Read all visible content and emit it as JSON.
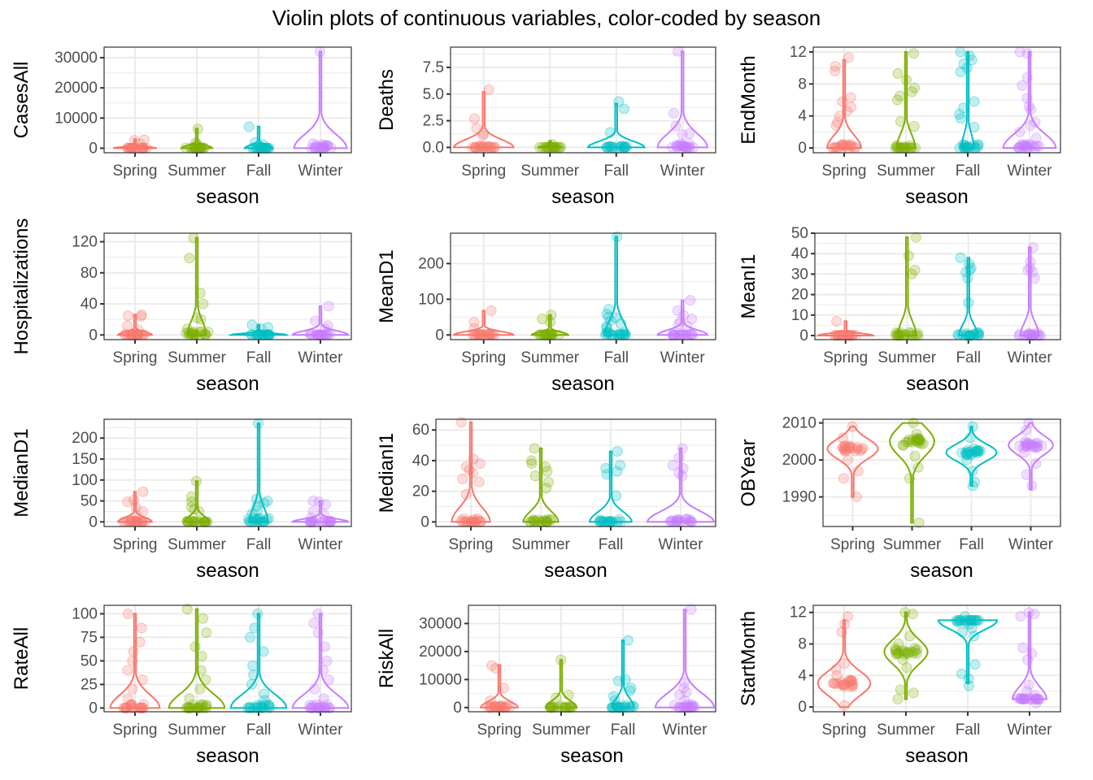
{
  "chart_data": {
    "type": "violin",
    "title": "Violin plots of continuous variables, color-coded by season",
    "categories": [
      "Spring",
      "Summer",
      "Fall",
      "Winter"
    ],
    "colors": {
      "Spring": "#F8766D",
      "Summer": "#7CAE00",
      "Fall": "#00BFC4",
      "Winter": "#C77CFF"
    },
    "grid": true,
    "legend": "none",
    "panels": [
      {
        "ylabel": "CasesAll",
        "xlabel": "season",
        "ylim": [
          -1500,
          33500
        ],
        "yticks": [
          0,
          10000,
          20000,
          30000
        ],
        "ytick_labels": [
          "0",
          "10000",
          "20000",
          "30000"
        ],
        "violins": [
          {
            "season": "Spring",
            "min": 0,
            "max": 3000,
            "peak_width": 0.7
          },
          {
            "season": "Summer",
            "min": 0,
            "max": 6500,
            "peak_width": 0.5
          },
          {
            "season": "Fall",
            "min": 0,
            "max": 7200,
            "peak_width": 0.45
          },
          {
            "season": "Winter",
            "min": 0,
            "max": 32000,
            "peak_width": 0.85
          }
        ],
        "outliers": {
          "Spring": [
            2800,
            2600,
            1500
          ],
          "Summer": [
            6400,
            1800,
            1200
          ],
          "Fall": [
            7100,
            1900,
            1200
          ],
          "Winter": [
            32000,
            1500,
            900
          ]
        }
      },
      {
        "ylabel": "Deaths",
        "xlabel": "season",
        "ylim": [
          -0.5,
          9.4
        ],
        "yticks": [
          0,
          2.5,
          5,
          7.5
        ],
        "ytick_labels": [
          "0.0",
          "2.5",
          "5.0",
          "7.5"
        ],
        "violins": [
          {
            "season": "Spring",
            "min": 0,
            "max": 5.2,
            "peak_width": 0.9
          },
          {
            "season": "Summer",
            "min": 0,
            "max": 0.6,
            "peak_width": 0.35
          },
          {
            "season": "Fall",
            "min": 0,
            "max": 4.1,
            "peak_width": 0.85
          },
          {
            "season": "Winter",
            "min": 0,
            "max": 9,
            "peak_width": 0.75
          }
        ],
        "outliers": {
          "Spring": [
            5.4,
            2.7,
            1.8,
            1.3,
            1.1
          ],
          "Summer": [
            0.3
          ],
          "Fall": [
            4.3,
            3.6,
            1.4
          ],
          "Winter": [
            9.0,
            3.2,
            2.0,
            1.3,
            1.2
          ]
        }
      },
      {
        "ylabel": "EndMonth",
        "xlabel": "season",
        "ylim": [
          -0.6,
          12.6
        ],
        "yticks": [
          0,
          4,
          8,
          12
        ],
        "ytick_labels": [
          "0",
          "4",
          "8",
          "12"
        ],
        "violins": [
          {
            "season": "Spring",
            "min": 0,
            "max": 11,
            "peak_width": 0.55
          },
          {
            "season": "Summer",
            "min": 0,
            "max": 12,
            "peak_width": 0.3
          },
          {
            "season": "Fall",
            "min": 0,
            "max": 12,
            "peak_width": 0.2
          },
          {
            "season": "Winter",
            "min": 0,
            "max": 12,
            "peak_width": 0.85
          }
        ],
        "outliers": {
          "Spring": [
            11.3,
            10.2,
            9.6,
            6.3,
            5.8,
            5.1,
            4.6,
            4.0,
            3.2,
            2.8
          ],
          "Summer": [
            11.8,
            9.3,
            8.5,
            7.5,
            7.0,
            6.5,
            6.0,
            3.3,
            2.7
          ],
          "Fall": [
            12.0,
            11.5,
            11.0,
            10.5,
            10.0,
            9.5,
            5.8,
            5.0,
            4.2,
            3.7,
            2.6
          ],
          "Winter": [
            12.0,
            11.8,
            8.8,
            7.8,
            6.2,
            5.2,
            4.8,
            3.2,
            2.8,
            2.0,
            1.2
          ]
        }
      },
      {
        "ylabel": "Hospitalizations",
        "xlabel": "season",
        "ylim": [
          -6,
          131
        ],
        "yticks": [
          0,
          40,
          80,
          120
        ],
        "ytick_labels": [
          "0",
          "40",
          "80",
          "120"
        ],
        "violins": [
          {
            "season": "Spring",
            "min": 0,
            "max": 26,
            "peak_width": 0.55
          },
          {
            "season": "Summer",
            "min": 0,
            "max": 125,
            "peak_width": 0.3
          },
          {
            "season": "Fall",
            "min": 0,
            "max": 13,
            "peak_width": 0.9
          },
          {
            "season": "Winter",
            "min": 0,
            "max": 37,
            "peak_width": 0.9
          }
        ],
        "outliers": {
          "Spring": [
            26,
            25,
            24,
            12,
            7
          ],
          "Summer": [
            125,
            99,
            54,
            40,
            22,
            20,
            8
          ],
          "Fall": [
            13,
            10,
            8
          ],
          "Winter": [
            37,
            18,
            12,
            8
          ]
        }
      },
      {
        "ylabel": "MeanD1",
        "xlabel": "season",
        "ylim": [
          -13,
          285
        ],
        "yticks": [
          0,
          100,
          200
        ],
        "ytick_labels": [
          "0",
          "100",
          "200"
        ],
        "violins": [
          {
            "season": "Spring",
            "min": 0,
            "max": 68,
            "peak_width": 0.9
          },
          {
            "season": "Summer",
            "min": 0,
            "max": 56,
            "peak_width": 0.55
          },
          {
            "season": "Fall",
            "min": 0,
            "max": 275,
            "peak_width": 0.35
          },
          {
            "season": "Winter",
            "min": 0,
            "max": 97,
            "peak_width": 0.75
          }
        ],
        "outliers": {
          "Spring": [
            68,
            36,
            18
          ],
          "Summer": [
            56,
            45,
            36
          ],
          "Fall": [
            275,
            72,
            58,
            50,
            48,
            40,
            32,
            24,
            20
          ],
          "Winter": [
            97,
            68,
            55,
            45,
            38,
            30,
            24
          ]
        }
      },
      {
        "ylabel": "MeanI1",
        "xlabel": "season",
        "ylim": [
          -2,
          50
        ],
        "yticks": [
          0,
          10,
          20,
          30,
          40,
          50
        ],
        "ytick_labels": [
          "0",
          "10",
          "20",
          "30",
          "40",
          "50"
        ],
        "violins": [
          {
            "season": "Spring",
            "min": 0,
            "max": 7,
            "peak_width": 0.9
          },
          {
            "season": "Summer",
            "min": 0,
            "max": 48,
            "peak_width": 0.3
          },
          {
            "season": "Fall",
            "min": 0,
            "max": 38,
            "peak_width": 0.3
          },
          {
            "season": "Winter",
            "min": 0,
            "max": 43,
            "peak_width": 0.3
          }
        ],
        "outliers": {
          "Spring": [
            7
          ],
          "Summer": [
            48,
            39,
            32,
            30
          ],
          "Fall": [
            38,
            35,
            33,
            32,
            31,
            28,
            16
          ],
          "Winter": [
            43,
            36,
            33,
            32,
            31,
            28
          ]
        }
      },
      {
        "ylabel": "MedianD1",
        "xlabel": "season",
        "ylim": [
          -11,
          245
        ],
        "yticks": [
          0,
          50,
          100,
          150,
          200
        ],
        "ytick_labels": [
          "0",
          "50",
          "100",
          "150",
          "200"
        ],
        "violins": [
          {
            "season": "Spring",
            "min": 0,
            "max": 72,
            "peak_width": 0.55
          },
          {
            "season": "Summer",
            "min": 0,
            "max": 97,
            "peak_width": 0.4
          },
          {
            "season": "Fall",
            "min": 0,
            "max": 235,
            "peak_width": 0.3
          },
          {
            "season": "Winter",
            "min": 0,
            "max": 50,
            "peak_width": 0.9
          }
        ],
        "outliers": {
          "Spring": [
            72,
            52,
            48,
            35,
            25,
            15
          ],
          "Summer": [
            97,
            60,
            48,
            35,
            30,
            25
          ],
          "Fall": [
            235,
            55,
            50,
            45,
            38,
            28,
            20
          ],
          "Winter": [
            50,
            48,
            42,
            25,
            18,
            10
          ]
        }
      },
      {
        "ylabel": "MedianI1",
        "xlabel": "season",
        "ylim": [
          -3,
          67
        ],
        "yticks": [
          0,
          20,
          40,
          60
        ],
        "ytick_labels": [
          "0",
          "20",
          "40",
          "60"
        ],
        "violins": [
          {
            "season": "Spring",
            "min": 0,
            "max": 65,
            "peak_width": 0.55
          },
          {
            "season": "Summer",
            "min": 0,
            "max": 48,
            "peak_width": 0.5
          },
          {
            "season": "Fall",
            "min": 0,
            "max": 46,
            "peak_width": 0.6
          },
          {
            "season": "Winter",
            "min": 0,
            "max": 48,
            "peak_width": 0.95
          }
        ],
        "outliers": {
          "Spring": [
            65,
            41,
            38,
            36,
            34,
            32,
            28,
            26,
            18
          ],
          "Summer": [
            48,
            40,
            38,
            36,
            33,
            30,
            26,
            22
          ],
          "Fall": [
            46,
            37,
            35,
            33,
            31,
            17
          ],
          "Winter": [
            48,
            42,
            37,
            35,
            32,
            30
          ]
        }
      },
      {
        "ylabel": "OBYear",
        "xlabel": "season",
        "ylim": [
          1982,
          2011
        ],
        "yticks": [
          1990,
          2000,
          2010
        ],
        "ytick_labels": [
          "1990",
          "2000",
          "2010"
        ],
        "violins": [
          {
            "season": "Spring",
            "min": 1990,
            "max": 2009,
            "peak_width": 0.85,
            "mode": 2003
          },
          {
            "season": "Summer",
            "min": 1983,
            "max": 2010,
            "peak_width": 0.75,
            "mode": 2005
          },
          {
            "season": "Fall",
            "min": 1993,
            "max": 2009,
            "peak_width": 0.85,
            "mode": 2002
          },
          {
            "season": "Winter",
            "min": 1992,
            "max": 2010,
            "peak_width": 0.75,
            "mode": 2004
          }
        ],
        "outliers": {
          "Spring": [
            2009,
            2006,
            2003,
            2000,
            1997,
            1995,
            1990
          ],
          "Summer": [
            2010,
            2007,
            2004,
            2001,
            1998,
            1995,
            1983
          ],
          "Fall": [
            2009,
            2006,
            2003,
            2000,
            1997,
            1994,
            1993
          ],
          "Winter": [
            2010,
            2008,
            2005,
            2002,
            1999,
            1996,
            1993
          ]
        }
      },
      {
        "ylabel": "RateAll",
        "xlabel": "season",
        "ylim": [
          -4,
          109
        ],
        "yticks": [
          0,
          25,
          50,
          75,
          100
        ],
        "ytick_labels": [
          "0",
          "25",
          "50",
          "75",
          "100"
        ],
        "violins": [
          {
            "season": "Spring",
            "min": 0,
            "max": 100,
            "peak_width": 0.8
          },
          {
            "season": "Summer",
            "min": 0,
            "max": 105,
            "peak_width": 0.9
          },
          {
            "season": "Fall",
            "min": 0,
            "max": 100,
            "peak_width": 0.9
          },
          {
            "season": "Winter",
            "min": 0,
            "max": 100,
            "peak_width": 0.9
          }
        ],
        "outliers": {
          "Spring": [
            100,
            85,
            70,
            60,
            50,
            40,
            30,
            20,
            10
          ],
          "Summer": [
            105,
            95,
            80,
            65,
            55,
            40,
            30,
            20,
            10
          ],
          "Fall": [
            100,
            85,
            75,
            60,
            45,
            35,
            25,
            15,
            8
          ],
          "Winter": [
            100,
            90,
            80,
            65,
            50,
            40,
            30,
            20,
            10
          ]
        }
      },
      {
        "ylabel": "RiskAll",
        "xlabel": "season",
        "ylim": [
          -1500,
          36500
        ],
        "yticks": [
          0,
          10000,
          20000,
          30000
        ],
        "ytick_labels": [
          "0",
          "10000",
          "20000",
          "30000"
        ],
        "violins": [
          {
            "season": "Spring",
            "min": 0,
            "max": 15200,
            "peak_width": 0.6
          },
          {
            "season": "Summer",
            "min": 0,
            "max": 17000,
            "peak_width": 0.5
          },
          {
            "season": "Fall",
            "min": 0,
            "max": 24000,
            "peak_width": 0.35
          },
          {
            "season": "Winter",
            "min": 0,
            "max": 35000,
            "peak_width": 0.95
          }
        ],
        "outliers": {
          "Spring": [
            15000,
            14000,
            7000,
            2500
          ],
          "Summer": [
            17000,
            4500,
            3500
          ],
          "Fall": [
            24000,
            10000,
            9500,
            7000,
            6000,
            4000,
            2500
          ],
          "Winter": [
            35000,
            9000,
            7000,
            5500,
            4500,
            2500
          ]
        }
      },
      {
        "ylabel": "StartMonth",
        "xlabel": "season",
        "ylim": [
          -0.6,
          12.9
        ],
        "yticks": [
          0,
          4,
          8,
          12
        ],
        "ytick_labels": [
          "0",
          "4",
          "8",
          "12"
        ],
        "violins": [
          {
            "season": "Spring",
            "min": 0,
            "max": 11,
            "peak_width": 0.85,
            "mode": 3
          },
          {
            "season": "Summer",
            "min": 1,
            "max": 12,
            "peak_width": 0.7,
            "mode": 7
          },
          {
            "season": "Fall",
            "min": 3,
            "max": 11,
            "peak_width": 0.95,
            "mode": 11
          },
          {
            "season": "Winter",
            "min": 1,
            "max": 12,
            "peak_width": 0.55,
            "mode": 1
          }
        ],
        "outliers": {
          "Spring": [
            11.5,
            10.5,
            9.5,
            5.5,
            4.8,
            4.0,
            3.2,
            2.8,
            0.2
          ],
          "Summer": [
            12,
            11.8,
            9,
            8,
            7,
            6,
            5,
            2.2,
            1.8,
            1.0
          ],
          "Fall": [
            11.5,
            11,
            10.5,
            10,
            9.5,
            9,
            5.4,
            4.2,
            3.6,
            2.7
          ],
          "Winter": [
            12,
            11.8,
            11.5,
            7.5,
            6.8,
            6.0,
            2.8,
            2.0,
            1.5,
            1.0,
            0.5
          ]
        }
      }
    ]
  }
}
